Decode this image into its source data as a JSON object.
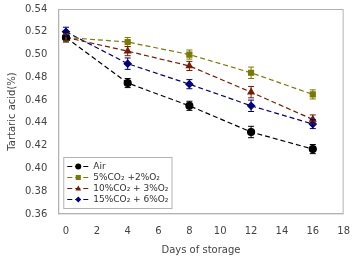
{
  "chart_data": {
    "type": "line",
    "x": [
      0,
      4,
      8,
      12,
      16
    ],
    "series": [
      {
        "name": "Air",
        "color": "#000000",
        "marker": "circle",
        "line_style": "dashed",
        "values": [
          0.515,
          0.475,
          0.455,
          0.432,
          0.417
        ],
        "errors": [
          0.004,
          0.004,
          0.004,
          0.005,
          0.004
        ]
      },
      {
        "name": "5%CO₂ +2%O₂",
        "color": "#7a7a00",
        "marker": "square",
        "line_style": "dashed",
        "values": [
          0.515,
          0.511,
          0.5,
          0.484,
          0.465
        ],
        "errors": [
          0.003,
          0.004,
          0.004,
          0.005,
          0.004
        ]
      },
      {
        "name": "10%CO₂ + 3%O₂",
        "color": "#7a1a00",
        "marker": "triangle",
        "line_style": "dashed",
        "values": [
          0.515,
          0.503,
          0.49,
          0.467,
          0.443
        ],
        "errors": [
          0.003,
          0.004,
          0.004,
          0.005,
          0.004
        ]
      },
      {
        "name": "15%CO₂ + 6%O₂",
        "color": "#000080",
        "marker": "diamond",
        "line_style": "dashed",
        "values": [
          0.52,
          0.492,
          0.474,
          0.455,
          0.439
        ],
        "errors": [
          0.004,
          0.005,
          0.004,
          0.005,
          0.004
        ]
      }
    ],
    "xlabel": "Days of storage",
    "ylabel": "Tartaric acid(%)",
    "xlim": [
      -0.5,
      18
    ],
    "xticks": [
      0,
      2,
      4,
      6,
      8,
      10,
      12,
      14,
      16,
      18
    ],
    "ylim": [
      0.36,
      0.54
    ],
    "yticks": [
      0.36,
      0.38,
      {
        "value": 0.4,
        "label": "0.40"
      },
      0.42,
      0.44,
      0.46,
      0.48,
      {
        "value": 0.5,
        "label": "0.50"
      },
      0.52,
      0.54
    ],
    "grid": false,
    "legend": "lower left"
  }
}
